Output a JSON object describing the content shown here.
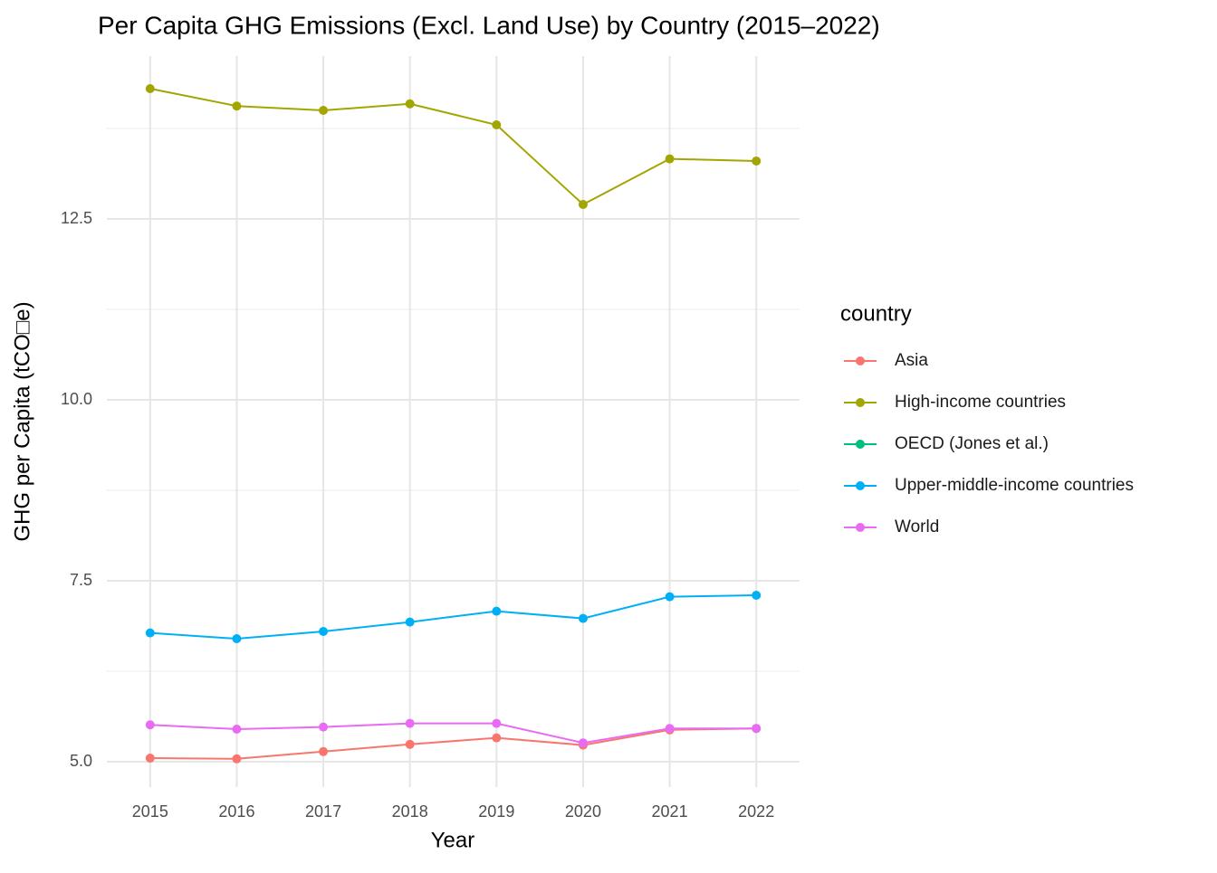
{
  "chart_data": {
    "type": "line",
    "title": "Per Capita GHG Emissions (Excl. Land Use) by Country (2015–2022)",
    "x_label": "Year",
    "y_label": "GHG per Capita (tCO□e)",
    "legend_title": "country",
    "legend_position": "right",
    "grid": true,
    "x": [
      2015,
      2016,
      2017,
      2018,
      2019,
      2020,
      2021,
      2022
    ],
    "xlim": [
      2014.5,
      2022.5
    ],
    "xticks": [
      2015,
      2016,
      2017,
      2018,
      2019,
      2020,
      2021,
      2022
    ],
    "ylim": [
      4.65,
      14.75
    ],
    "yticks": [
      {
        "value": 5,
        "label": "5.0"
      },
      7.5,
      {
        "value": 10,
        "label": "10.0"
      },
      12.5
    ],
    "y_minor_ticks": [
      6.25,
      8.75,
      11.25,
      13.75
    ],
    "series": [
      {
        "name": "Asia",
        "color": "#F8766D",
        "values": [
          5.05,
          5.04,
          5.14,
          5.24,
          5.33,
          5.23,
          5.44,
          5.46
        ]
      },
      {
        "name": "High-income countries",
        "color": "#A3A500",
        "values": [
          14.3,
          14.06,
          14.0,
          14.09,
          13.8,
          12.7,
          13.33,
          13.3
        ]
      },
      {
        "name": "OECD (Jones et al.)",
        "color": "#00BF7D",
        "values": [
          null,
          null,
          null,
          null,
          null,
          null,
          null,
          null
        ]
      },
      {
        "name": "Upper-middle-income countries",
        "color": "#00B0F6",
        "values": [
          6.78,
          6.7,
          6.8,
          6.93,
          7.08,
          6.98,
          7.28,
          7.3
        ]
      },
      {
        "name": "World",
        "color": "#E76BF3",
        "values": [
          5.51,
          5.45,
          5.48,
          5.53,
          5.53,
          5.26,
          5.46,
          5.46
        ]
      }
    ]
  }
}
